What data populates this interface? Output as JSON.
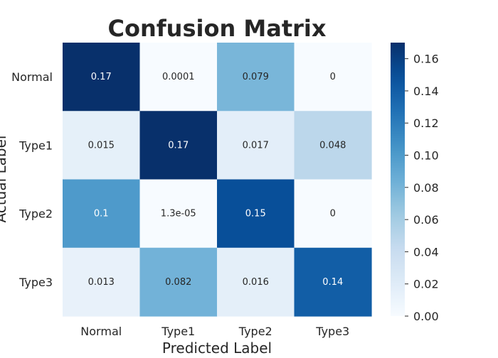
{
  "chart_data": {
    "type": "heatmap",
    "title": "Confusion Matrix",
    "xlabel": "Predicted Label",
    "ylabel": "Actual Label",
    "x_categories": [
      "Normal",
      "Type1",
      "Type2",
      "Type3"
    ],
    "y_categories": [
      "Normal",
      "Type1",
      "Type2",
      "Type3"
    ],
    "values": [
      [
        0.17,
        0.0001,
        0.079,
        0
      ],
      [
        0.015,
        0.17,
        0.017,
        0.048
      ],
      [
        0.1,
        1.3e-05,
        0.15,
        0
      ],
      [
        0.013,
        0.082,
        0.016,
        0.14
      ]
    ],
    "annotations": [
      [
        "0.17",
        "0.0001",
        "0.079",
        "0"
      ],
      [
        "0.015",
        "0.17",
        "0.017",
        "0.048"
      ],
      [
        "0.1",
        "1.3e-05",
        "0.15",
        "0"
      ],
      [
        "0.013",
        "0.082",
        "0.016",
        "0.14"
      ]
    ],
    "colormap": "Blues",
    "colorbar": {
      "range": [
        0,
        0.17
      ],
      "ticks": [
        "0.00",
        "0.02",
        "0.04",
        "0.06",
        "0.08",
        "0.10",
        "0.12",
        "0.14",
        "0.16"
      ]
    }
  }
}
